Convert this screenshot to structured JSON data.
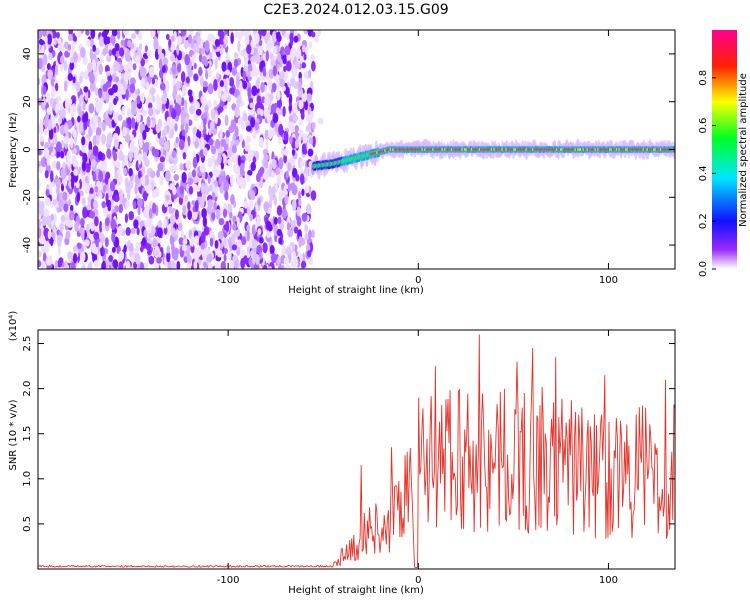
{
  "title": "C2E3.2024.012.03.15.G09",
  "chart_data": [
    {
      "type": "heatmap",
      "xlabel": "Height of straight line (km)",
      "ylabel": "Frequency (Hz)",
      "xlim": [
        -200,
        135
      ],
      "ylim": [
        -50,
        50
      ],
      "x_ticks": [
        -100,
        0,
        100
      ],
      "x_tick_labels": [
        "-100",
        "0",
        "100"
      ],
      "y_ticks": [
        -40,
        -20,
        0,
        20,
        40
      ],
      "y_tick_labels": [
        "-40",
        "-20",
        "0",
        "20",
        "40"
      ],
      "noise_region_x": [
        -200,
        -55
      ],
      "signal_start_x": -55,
      "signal_freq_path": [
        [
          -55,
          -7
        ],
        [
          -45,
          -6
        ],
        [
          -35,
          -4
        ],
        [
          -25,
          -2
        ],
        [
          -15,
          0
        ],
        [
          0,
          0
        ],
        [
          135,
          0
        ]
      ],
      "colorbar": {
        "label": "Normalized spectral amplitude",
        "range": [
          0,
          1
        ],
        "ticks": [
          0.0,
          0.2,
          0.4,
          0.6,
          0.8
        ],
        "tick_labels": [
          "0.0",
          "0.2",
          "0.4",
          "0.6",
          "0.8"
        ],
        "colors": [
          "#ffffff",
          "#7f00ff",
          "#0000ff",
          "#00ffff",
          "#00ff00",
          "#ffff00",
          "#ff0000",
          "#ff00aa"
        ]
      }
    },
    {
      "type": "line",
      "xlabel": "Height of straight line (km)",
      "ylabel": "SNR (10 * v/v)",
      "scale_label": "(x10⁴)",
      "xlim": [
        -200,
        135
      ],
      "ylim": [
        0,
        2.65
      ],
      "x_ticks": [
        -100,
        0,
        100
      ],
      "x_tick_labels": [
        "-100",
        "0",
        "100"
      ],
      "y_ticks": [
        0.5,
        1.0,
        1.5,
        2.0,
        2.5
      ],
      "y_tick_labels": [
        "0.5",
        "1.0",
        "1.5",
        "2.0",
        "2.5"
      ],
      "line_color": "#e8312a",
      "baseline_x_end": -45,
      "baseline_value": 0.02,
      "segments": [
        {
          "x": [
            -45,
            -30,
            -22,
            -15,
            -8,
            -2
          ],
          "y": [
            0.05,
            0.4,
            0.6,
            0.5,
            1.0,
            0.9
          ]
        },
        {
          "x": [
            0,
            10,
            20,
            30,
            40,
            50,
            60,
            70,
            80,
            90,
            100,
            110,
            120,
            130,
            135
          ],
          "y": [
            1.6,
            1.3,
            1.5,
            1.4,
            1.5,
            1.3,
            1.5,
            1.3,
            1.4,
            1.2,
            1.3,
            1.2,
            1.3,
            1.2,
            1.3
          ]
        }
      ],
      "peaks": [
        {
          "x": -30,
          "y": 1.15
        },
        {
          "x": -14,
          "y": 1.35
        },
        {
          "x": 0,
          "y": 1.9
        },
        {
          "x": 9,
          "y": 2.25
        },
        {
          "x": 32,
          "y": 2.6
        },
        {
          "x": 52,
          "y": 2.3
        },
        {
          "x": 60,
          "y": 2.45
        },
        {
          "x": 72,
          "y": 2.35
        },
        {
          "x": 98,
          "y": 2.15
        },
        {
          "x": 130,
          "y": 2.1
        }
      ]
    }
  ]
}
